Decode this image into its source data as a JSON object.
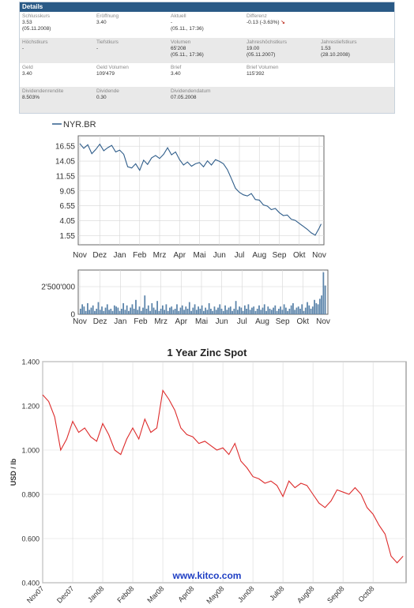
{
  "details": {
    "title": "Details",
    "rows": [
      [
        {
          "label": "Schlusskurs",
          "values": [
            "3.53",
            "(05.11.2008)"
          ]
        },
        {
          "label": "Eröffnung",
          "values": [
            "3.40"
          ]
        },
        {
          "label": "Aktuell",
          "values": [
            "-",
            "(05.11., 17:36)"
          ]
        },
        {
          "label": "Differenz",
          "values": [
            "-0.13 (-3.63%)"
          ],
          "arrow": "↘"
        }
      ],
      [
        {
          "label": "Höchstkurs",
          "values": [
            "-"
          ]
        },
        {
          "label": "Tiefstkurs",
          "values": [
            "-"
          ]
        },
        {
          "label": "Volumen",
          "values": [
            "65'208",
            "(05.11., 17:36)"
          ]
        },
        {
          "label": "Jahreshöchstkurs",
          "values": [
            "19.00",
            "(05.11.2007)"
          ]
        },
        {
          "label": "Jahrestiefstkurs",
          "values": [
            "1.53",
            "(28.10.2008)"
          ]
        }
      ],
      [
        {
          "label": "Geld",
          "values": [
            "3.40"
          ]
        },
        {
          "label": "Geld Volumen",
          "values": [
            "109'479"
          ]
        },
        {
          "label": "Brief",
          "values": [
            "3.40"
          ]
        },
        {
          "label": "Brief Volumen",
          "values": [
            "115'392"
          ]
        }
      ],
      [
        {
          "label": "Dividendenrendite",
          "values": [
            "8.503%"
          ]
        },
        {
          "label": "Dividende",
          "values": [
            "0.30"
          ]
        },
        {
          "label": "Dividendendatum",
          "values": [
            "07.05.2008"
          ]
        }
      ]
    ]
  },
  "chart_data": [
    {
      "type": "line",
      "legend": "NYR.BR",
      "line_color": "#2f5d8a",
      "ylim": [
        0,
        18.3
      ],
      "yticks": [
        "16.55",
        "14.05",
        "11.55",
        "9.05",
        "6.55",
        "4.05",
        "1.55"
      ],
      "ytick_values": [
        16.55,
        14.05,
        11.55,
        9.05,
        6.55,
        4.05,
        1.55
      ],
      "xticks": [
        "Nov",
        "Dez",
        "Jan",
        "Feb",
        "Mrz",
        "Apr",
        "Mai",
        "Jun",
        "Jul",
        "Aug",
        "Sep",
        "Okt",
        "Nov"
      ],
      "x": [
        0,
        0.2,
        0.4,
        0.6,
        0.8,
        1.0,
        1.2,
        1.4,
        1.6,
        1.8,
        2.0,
        2.2,
        2.4,
        2.6,
        2.8,
        3.0,
        3.2,
        3.4,
        3.6,
        3.8,
        4.0,
        4.2,
        4.4,
        4.6,
        4.8,
        5.0,
        5.2,
        5.4,
        5.6,
        5.8,
        6.0,
        6.2,
        6.4,
        6.6,
        6.8,
        7.0,
        7.2,
        7.4,
        7.6,
        7.8,
        8.0,
        8.2,
        8.4,
        8.6,
        8.8,
        9.0,
        9.2,
        9.4,
        9.6,
        9.8,
        10.0,
        10.2,
        10.4,
        10.6,
        10.8,
        11.0,
        11.2,
        11.4,
        11.6,
        11.8,
        12.0,
        12.1
      ],
      "values": [
        17.0,
        16.2,
        16.8,
        15.3,
        16.0,
        16.9,
        15.8,
        16.3,
        16.7,
        15.6,
        15.9,
        15.2,
        13.1,
        12.9,
        13.6,
        12.5,
        14.2,
        13.5,
        14.6,
        15.0,
        14.5,
        15.2,
        16.3,
        15.1,
        15.6,
        14.3,
        13.4,
        13.9,
        13.2,
        13.6,
        13.8,
        13.1,
        14.1,
        13.4,
        14.3,
        14.0,
        13.6,
        12.6,
        11.1,
        9.5,
        8.8,
        8.4,
        8.2,
        8.6,
        7.6,
        7.5,
        6.7,
        6.5,
        5.9,
        6.1,
        5.4,
        4.9,
        5.0,
        4.3,
        4.1,
        3.6,
        3.1,
        2.6,
        2.0,
        1.6,
        2.8,
        3.5
      ]
    },
    {
      "type": "bar",
      "ytick_label": "2'500'000",
      "ylim": [
        0,
        4000000
      ],
      "ytick_values": [
        0,
        2500000
      ],
      "xticks": [
        "Nov",
        "Dez",
        "Jan",
        "Feb",
        "Mrz",
        "Apr",
        "Mai",
        "Jun",
        "Jul",
        "Aug",
        "Sep",
        "Okt",
        "Nov"
      ],
      "bar_color": "#5b84aa",
      "values": [
        500000,
        900000,
        700000,
        300000,
        1000000,
        400000,
        600000,
        800000,
        300000,
        500000,
        1100000,
        400000,
        700000,
        300000,
        600000,
        900000,
        400000,
        500000,
        300000,
        800000,
        700000,
        600000,
        300000,
        500000,
        1000000,
        400000,
        800000,
        300000,
        600000,
        900000,
        500000,
        1300000,
        400000,
        700000,
        300000,
        600000,
        1700000,
        500000,
        800000,
        300000,
        1000000,
        600000,
        400000,
        1200000,
        300000,
        500000,
        800000,
        400000,
        900000,
        300000,
        600000,
        700000,
        400000,
        500000,
        900000,
        300000,
        600000,
        800000,
        400000,
        700000,
        500000,
        1100000,
        300000,
        600000,
        900000,
        400000,
        700000,
        500000,
        800000,
        300000,
        600000,
        400000,
        1000000,
        500000,
        300000,
        700000,
        400000,
        600000,
        900000,
        500000,
        300000,
        800000,
        400000,
        600000,
        700000,
        300000,
        500000,
        1200000,
        400000,
        700000,
        600000,
        300000,
        800000,
        500000,
        900000,
        400000,
        600000,
        700000,
        300000,
        500000,
        800000,
        400000,
        600000,
        900000,
        300000,
        700000,
        500000,
        400000,
        600000,
        800000,
        300000,
        500000,
        700000,
        400000,
        900000,
        600000,
        300000,
        500000,
        800000,
        1000000,
        400000,
        600000,
        700000,
        500000,
        900000,
        300000,
        600000,
        1100000,
        800000,
        500000,
        700000,
        1300000,
        1000000,
        900000,
        1400000,
        1700000,
        3800000,
        2600000
      ]
    },
    {
      "type": "line",
      "title": "1 Year Zinc Spot",
      "ylabel": "USD / lb",
      "line_color": "#dd2b2b",
      "ylim": [
        0.4,
        1.4
      ],
      "yticks": [
        "1.400",
        "1.200",
        "1.000",
        "0.800",
        "0.600",
        "0.400"
      ],
      "ytick_values": [
        1.4,
        1.2,
        1.0,
        0.8,
        0.6,
        0.4
      ],
      "xticks": [
        "Nov07",
        "Dec07",
        "Jan08",
        "Feb08",
        "Mar08",
        "Apr08",
        "May08",
        "Jun08",
        "Jul08",
        "Aug08",
        "Sep08",
        "Oct08"
      ],
      "watermark": "www.kitco.com",
      "x": [
        0,
        0.2,
        0.4,
        0.6,
        0.8,
        1.0,
        1.2,
        1.4,
        1.6,
        1.8,
        2.0,
        2.2,
        2.4,
        2.6,
        2.8,
        3.0,
        3.2,
        3.4,
        3.6,
        3.8,
        4.0,
        4.2,
        4.4,
        4.6,
        4.8,
        5.0,
        5.2,
        5.4,
        5.6,
        5.8,
        6.0,
        6.2,
        6.4,
        6.6,
        6.8,
        7.0,
        7.2,
        7.4,
        7.6,
        7.8,
        8.0,
        8.2,
        8.4,
        8.6,
        8.8,
        9.0,
        9.2,
        9.4,
        9.6,
        9.8,
        10.0,
        10.2,
        10.4,
        10.6,
        10.8,
        11.0,
        11.2,
        11.4,
        11.6,
        11.8,
        12.0
      ],
      "values": [
        1.25,
        1.22,
        1.15,
        1.0,
        1.05,
        1.13,
        1.08,
        1.1,
        1.06,
        1.04,
        1.12,
        1.07,
        1.0,
        0.98,
        1.05,
        1.1,
        1.05,
        1.14,
        1.08,
        1.1,
        1.27,
        1.23,
        1.18,
        1.1,
        1.07,
        1.06,
        1.03,
        1.04,
        1.02,
        1.0,
        1.01,
        0.98,
        1.03,
        0.95,
        0.92,
        0.88,
        0.87,
        0.85,
        0.86,
        0.84,
        0.79,
        0.86,
        0.83,
        0.85,
        0.84,
        0.8,
        0.76,
        0.74,
        0.77,
        0.82,
        0.81,
        0.8,
        0.83,
        0.8,
        0.74,
        0.71,
        0.66,
        0.62,
        0.52,
        0.49,
        0.52
      ]
    }
  ]
}
